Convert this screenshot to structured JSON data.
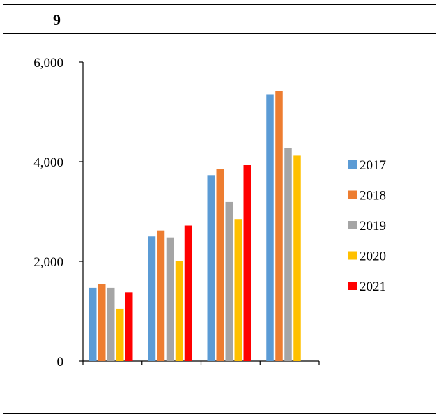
{
  "panel": {
    "number": "9"
  },
  "chart_data": {
    "type": "bar",
    "categories": [
      "",
      "",
      "",
      ""
    ],
    "ylim": [
      0,
      6000
    ],
    "yticks": [
      0,
      2000,
      4000,
      6000
    ],
    "ytick_labels": [
      "0",
      "2,000",
      "4,000",
      "6,000"
    ],
    "grid": false,
    "legend_position": "right",
    "series": [
      {
        "name": "2017",
        "color": "#5b9bd5",
        "values": [
          1470,
          2500,
          3730,
          5350
        ]
      },
      {
        "name": "2018",
        "color": "#ed7d31",
        "values": [
          1550,
          2620,
          3850,
          5420
        ]
      },
      {
        "name": "2019",
        "color": "#a5a5a5",
        "values": [
          1470,
          2480,
          3190,
          4270
        ]
      },
      {
        "name": "2020",
        "color": "#ffc000",
        "values": [
          1050,
          2010,
          2850,
          4120
        ]
      },
      {
        "name": "2021",
        "color": "#ff0000",
        "values": [
          1380,
          2720,
          3930,
          null
        ]
      }
    ]
  }
}
